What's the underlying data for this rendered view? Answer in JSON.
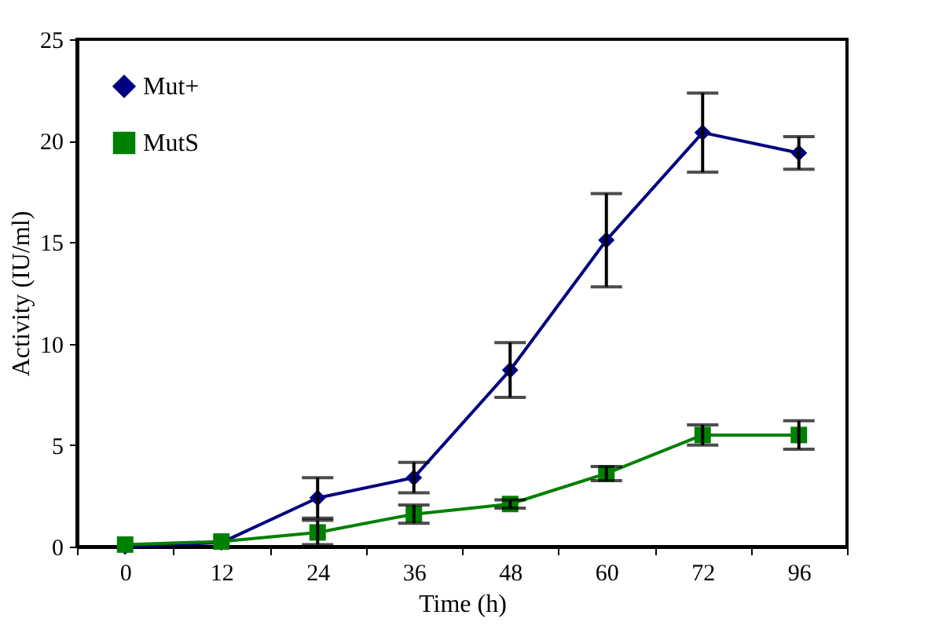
{
  "chart_data": {
    "type": "line",
    "xlabel": "Time (h)",
    "ylabel": "Activity (IU/ml)",
    "categories": [
      "0",
      "12",
      "24",
      "36",
      "48",
      "60",
      "72",
      "96"
    ],
    "ylim": [
      0,
      25
    ],
    "yticks": [
      0,
      5,
      10,
      15,
      20,
      25
    ],
    "grid": false,
    "legend": "top left",
    "line_style": "solid",
    "series": [
      {
        "name": "Mut+",
        "color": "#000080",
        "marker": "diamond",
        "values": [
          0,
          0.2,
          2.4,
          3.4,
          8.7,
          15.1,
          20.4,
          19.4
        ],
        "errors": [
          null,
          null,
          1.0,
          0.75,
          1.35,
          2.3,
          1.95,
          0.8
        ]
      },
      {
        "name": "MutS",
        "color": "#008000",
        "marker": "square",
        "values": [
          0.1,
          0.25,
          0.7,
          1.6,
          2.1,
          3.6,
          5.5,
          5.5
        ],
        "errors": [
          null,
          null,
          0.6,
          0.45,
          0.2,
          0.35,
          0.5,
          0.7
        ]
      }
    ]
  }
}
